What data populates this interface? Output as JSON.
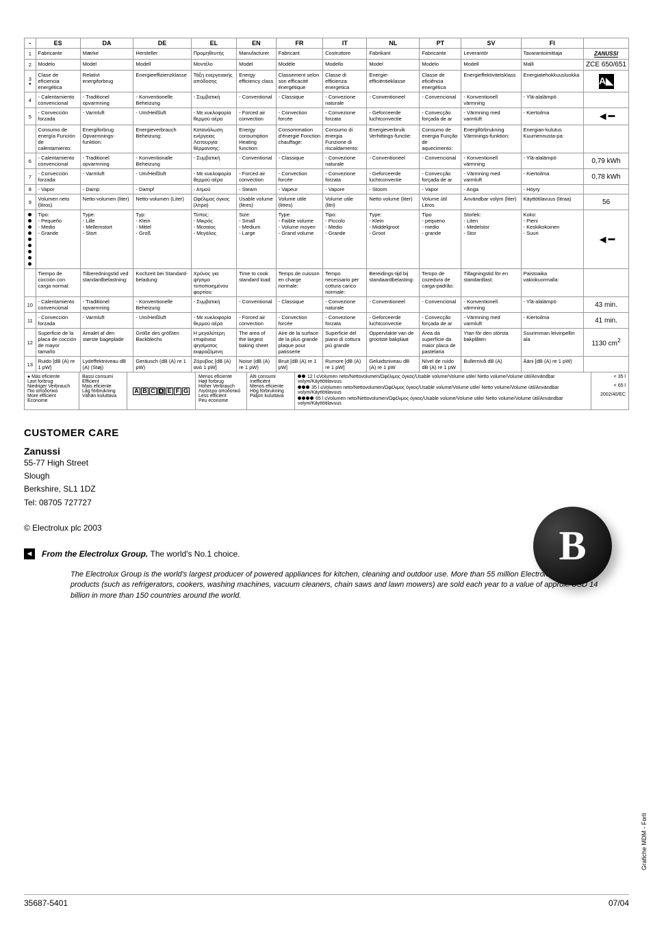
{
  "header": {
    "langs": [
      "ES",
      "DA",
      "DE",
      "EL",
      "EN",
      "FR",
      "IT",
      "NL",
      "PT",
      "SV",
      "FI"
    ]
  },
  "rows": [
    {
      "n": "1",
      "cells": [
        "Fabricante",
        "Mærke",
        "Hersteller",
        "Προμηθευτής",
        "Manufacturer",
        "Fabricant",
        "Costruttore",
        "Fabrikant",
        "Fabricante",
        "Leverantör",
        "Tavarantoimittaja"
      ],
      "last": "zanussi"
    },
    {
      "n": "2",
      "cells": [
        "Modelo",
        "Model",
        "Modell",
        "Μοντέλο",
        "Model",
        "Modèle",
        "Modello",
        "Model",
        "Modelo",
        "Modell",
        "Malli"
      ],
      "last": "ZCE 650/651"
    },
    {
      "n": "3",
      "icon": "3dot",
      "cells": [
        "Clase de eficiencia energética",
        "Relativt energiforbrug",
        "Energieeffizienzklasse",
        "Τάξη ενεργειακής απόδοσης",
        "Energy efficiency class",
        "Classement selon son efficacité énergétique",
        "Classe di efficienza energetica",
        "Energie-efficiëntieklasse",
        "Classe de eficiência energética",
        "Energieffektivitetsklass",
        "Energiatehokkuusluokka"
      ],
      "last": "triangle"
    },
    {
      "n": "4",
      "cells": [
        "- Calentamiento convencional",
        "- Traditionel opvarmning",
        "- Konventionelle Beheizung",
        "- Συμβατική",
        "- Conventional",
        "- Classique",
        "- Convezione naturale",
        "- Conventioneel",
        "- Convencional",
        "- Konventionell värmning",
        "- Ylä-alalämpö"
      ],
      "last": ""
    },
    {
      "n": "5",
      "cells": [
        "- Convección forzada",
        "- Varmluft",
        "- Um/Heißluft",
        "- Με κυκλοφορία θερμού αέρα",
        "- Forced air convection",
        "- Convection forcée",
        "- Convezione forzata",
        "- Geforceerde luchtconvectie",
        "- Convecção forçada de ar",
        "- Värmning med varmluft",
        "- Kiertoilma"
      ],
      "last": "arrow"
    },
    {
      "n": "",
      "cells": [
        "Consumo de energía Función de calentamiento:",
        "Energiforbrug Opvarmnings-funktion:",
        "Energieverbrauch Beheizung:",
        "Κατανάλωση ενέργειας Λειτουργία θέρμανσης:",
        "Energy consumption Heating function:",
        "Consommation d'énergie Fonction chauffage:",
        "Consumo di energia Funzione di riscaldamento:",
        "Energieverbruik Verhittings-functie:",
        "Consumo de energia Função de aquecimento:",
        "Energiförbrukning Värmnings-funktion:",
        "Energian-kulutus Kuumennusta-pa:"
      ],
      "last": ""
    },
    {
      "n": "6",
      "cells": [
        "- Calentamiento convencional",
        "- Traditionel opvarmning",
        "- Konventionalle Beheizung",
        "- Συμβατική",
        "- Conventional",
        "- Classique",
        "- Convezione naturale",
        "- Conventioneel",
        "- Convencional",
        "- Konventionell värmning",
        "- Ylä-alalämpö"
      ],
      "last": "0,79 kWh"
    },
    {
      "n": "7",
      "cells": [
        "- Convección forzada",
        "- Varmluft",
        "- Um/Heißluft",
        "- Με κυκλοφορία θερμού αέρα",
        "- Forced air convection",
        "- Convection forcée",
        "- Convezione forzata",
        "- Geforceerde luchtconvectie",
        "- Convecção forçada de ar",
        "- Värmning med varmluft",
        "- Kiertoilma"
      ],
      "last": "0,78 kWh"
    },
    {
      "n": "8",
      "cells": [
        "- Vapor",
        "- Damp",
        "- Dampf",
        "- Ατμού",
        "- Steam",
        "- Vapeur",
        "- Vapore",
        "- Stoom",
        "- Vapor",
        "- Anga",
        "- Höyry"
      ],
      "last": ""
    },
    {
      "n": "9",
      "cells": [
        "Volumen neto (litros)",
        "Netto-volumen (liter)",
        "Netto-volumen (Liter)",
        "Ωφέλιμος όγκος (λίτρα)",
        "Usable volume (litres)",
        "Volume utile (litres)",
        "Volume utile (litri)",
        "Netto volume (liter)",
        "Volume útil Litros",
        "Användbar volym (liter)",
        "Käyttötilavuus (litraa)"
      ],
      "last": "56"
    },
    {
      "n": "dots",
      "cells": [
        "Tipo:\n- Pequeño\n- Medio\n- Grande",
        "Type:\n- Lille\n- Mellemstort\n- Stort",
        "Typ:\n- Klein\n- Mittel\n- Groß",
        "Τύπος:\n- Μικρός\n- Μεσαίος\n- Μεγάλος",
        "Size:\n- Small\n- Medium\n- Large",
        "Type:\n- Faible volume\n- Volume moyen\n- Grand volume",
        "Tipo:\n- Piccolo\n- Medio\n- Grande",
        "Type:\n- Klein\n- Middelgroot\n- Groot",
        "Tipo\n- pequeno\n- medio\n- grande",
        "Storlek:\n- Liten\n- Medelstor\n- Stor",
        "Koko:\n- Pieni\n- Keskikokoinen\n- Suuri"
      ],
      "last": "arrow"
    },
    {
      "n": "",
      "cells": [
        "Tiempo de cocción con carga normal:",
        "Tilberedningstid ved standardbelastning:",
        "Kochzeit bei Standard-beladung:",
        "Χρόνος για ψήσιμο τυποποιημένου φορτίου:",
        "Time to cook standard load:",
        "Temps de cuisson en charge normale:",
        "Tempo necessario per cottura carico normale:",
        "Bereidings-tijd bij standaardbelasting:",
        "Tempo de cozedura de carga-padrão:",
        "Tillagningstid för en standardlast:",
        "Paistoaika vakiokuormalla:"
      ],
      "last": ""
    },
    {
      "n": "10",
      "cells": [
        "- Calentamiento convencional",
        "- Traditionel opvarmning",
        "- Konventionelle Beheizung",
        "- Συμβατική",
        "- Conventional",
        "- Classique",
        "- Convezione naturale",
        "- Conventioneel",
        "- Convencional",
        "- Konventionell värmning",
        "- Ylä-alalämpö"
      ],
      "last": "43 min."
    },
    {
      "n": "11",
      "cells": [
        "- Convección forzada",
        "- Varmluft",
        "- Um/Heißluft",
        "- Με κυκλοφορία θερμού αέρα",
        "- Forced air convection",
        "- Convection forcée",
        "- Convezione forzata",
        "- Geforceerde luchtconvectie",
        "- Convecção forçada de ar",
        "- Värmning med varmluft",
        "- Kiertoilma"
      ],
      "last": "41 min."
    },
    {
      "n": "12",
      "cells": [
        "Superficie de la placa de cocción de mayor tamaño",
        "Arealet af den største bageplade",
        "Größe des größten Backblechs",
        "Η μεγαλύτερη επιφάνεια ψησίματος εκφραζόμενη",
        "The area of the largest baking sheet",
        "Aire de la surface de la plus grande plaque pour patisserie",
        "Superficie del piano di cottura più grande",
        "Oppervlakte van de grootste bakplaat",
        "Área da superfície da maior placa de pastelaria",
        "Ytan för den största bakplåten",
        "Suurimman leivinpellin ala"
      ],
      "last": "1130 cm²"
    },
    {
      "n": "13",
      "cells": [
        "Ruido [dB (A) re 1 pW]",
        "Lydeffektniveau dB (A) (Støj)",
        "Geräusch (dB (A) re 1 pW)",
        "Ζόρυβος [dB (A) ανά 1 pW]",
        "Noise (dB (A) re 1 pW)",
        "Bruit [dB (A) re 1 pW]",
        "Rumore [dB (A) re 1 pW]",
        "Geluidsniveau dB (A) re 1 pW",
        "Nível de ruído dB (A) re 1 pW",
        "Bullernivå dB (A)",
        "Ääni [dB (A) re 1 pW)"
      ],
      "last": ""
    }
  ],
  "legend": {
    "col1_head": "● Más eficiente",
    "col1": [
      "Lavt forbrug",
      "Niedriger Verbrauch",
      "Πιο αποδοτικό",
      "More efficient",
      "Econome"
    ],
    "col2": [
      "Bassi consumi",
      "Efficient",
      "Mais eficiente",
      "Låg förbrukning",
      "Vähän kuluttava"
    ],
    "col3_label": "rating",
    "col3": [
      "Menos eficiente",
      "Højt forbrug",
      "Hoher Verbrauch",
      "Λιγότερο αποδοτικό",
      "Less efficient",
      "Peu econome"
    ],
    "col4": [
      "Alti consumi",
      "Inefficiënt",
      "Menos eficiente",
      "Hög förbrukning",
      "Paljon kuluttava"
    ],
    "right": [
      {
        "dots": 2,
        "text": "12 l ≤Volumen neto/Nettovolumen/Ωφέλιμος όγκος/Usable volume/Volume utile/ Netto volume/Volume útil/Användbar volym/Käyttötilavuus.",
        "val": "< 35 l"
      },
      {
        "dots": 3,
        "text": "35 l ≤Volumen neto/Nettovolumen/Ωφέλιμος όγκος/Usable volume/Volume utile/ Netto volume/Volume útil/Användbar volym/Käyttötilavuus",
        "val": "< 65 l"
      },
      {
        "dots": 4,
        "text": "65 l ≤Volumen neto/Nettovolumen/Ωφέλιμος όγκος/Usable volume/Volume utile/ Netto volume/Volume útil/Användbar volym/Käyttötilavuus",
        "val": "2002/40/EC"
      }
    ]
  },
  "customer_care": {
    "heading": "CUSTOMER CARE",
    "brand": "Zanussi",
    "addr1": "55-77 High Street",
    "addr2": "Slough",
    "addr3": "Berkshire,  SL1 1DZ",
    "tel": "Tel: 08705 727727",
    "copyright": "© Electrolux plc 2003"
  },
  "electrolux": {
    "line_bold": "From the Electrolux Group.",
    "line_rest": "The world's No.1 choice.",
    "blurb": "The Electrolux Group is the world's largest producer of powered appliances for kitchen, cleaning and outdoor use. More than 55 million Electrolux Group products (such as refrigerators, cookers, washing machines, vacuum cleaners, chain saws and lawn mowers) are sold each year to a value of approx. USD 14 billion in more than 150 countries around the world."
  },
  "footer": {
    "left": "35687-5401",
    "right": "07/04"
  },
  "side": "Grafiche MDM - Forlì"
}
